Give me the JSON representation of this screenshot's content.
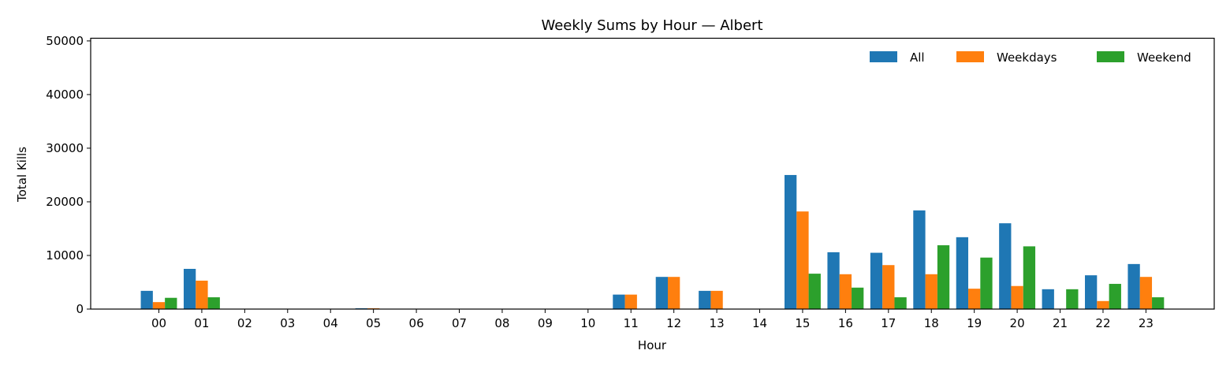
{
  "chart_data": {
    "type": "bar",
    "title": "Weekly Sums by Hour — Albert",
    "xlabel": "Hour",
    "ylabel": "Total Kills",
    "ylim": [
      0,
      50500
    ],
    "yticks": [
      "0",
      "10000",
      "20000",
      "30000",
      "40000",
      "50000"
    ],
    "grid": false,
    "legend_placement": "top-right",
    "categories": [
      "00",
      "01",
      "02",
      "03",
      "04",
      "05",
      "06",
      "07",
      "08",
      "09",
      "10",
      "11",
      "12",
      "13",
      "14",
      "15",
      "16",
      "17",
      "18",
      "19",
      "20",
      "21",
      "22",
      "23"
    ],
    "series": [
      {
        "name": "All",
        "color": "#1f77b4",
        "values": [
          3400,
          7500,
          0,
          0,
          0,
          150,
          0,
          0,
          0,
          0,
          0,
          2700,
          6000,
          3400,
          0,
          25000,
          10600,
          10500,
          18400,
          13400,
          16000,
          3700,
          6300,
          8400
        ]
      },
      {
        "name": "Weekdays",
        "color": "#ff7f0e",
        "values": [
          1300,
          5300,
          0,
          0,
          0,
          150,
          0,
          0,
          0,
          0,
          0,
          2700,
          6000,
          3400,
          0,
          18200,
          6500,
          8200,
          6500,
          3800,
          4300,
          0,
          1500,
          6000
        ]
      },
      {
        "name": "Weekend",
        "color": "#2ca02c",
        "values": [
          2100,
          2200,
          0,
          0,
          0,
          0,
          0,
          0,
          0,
          0,
          0,
          0,
          0,
          0,
          0,
          6600,
          4000,
          2200,
          11900,
          9600,
          11700,
          3700,
          4700,
          2200
        ]
      }
    ]
  }
}
